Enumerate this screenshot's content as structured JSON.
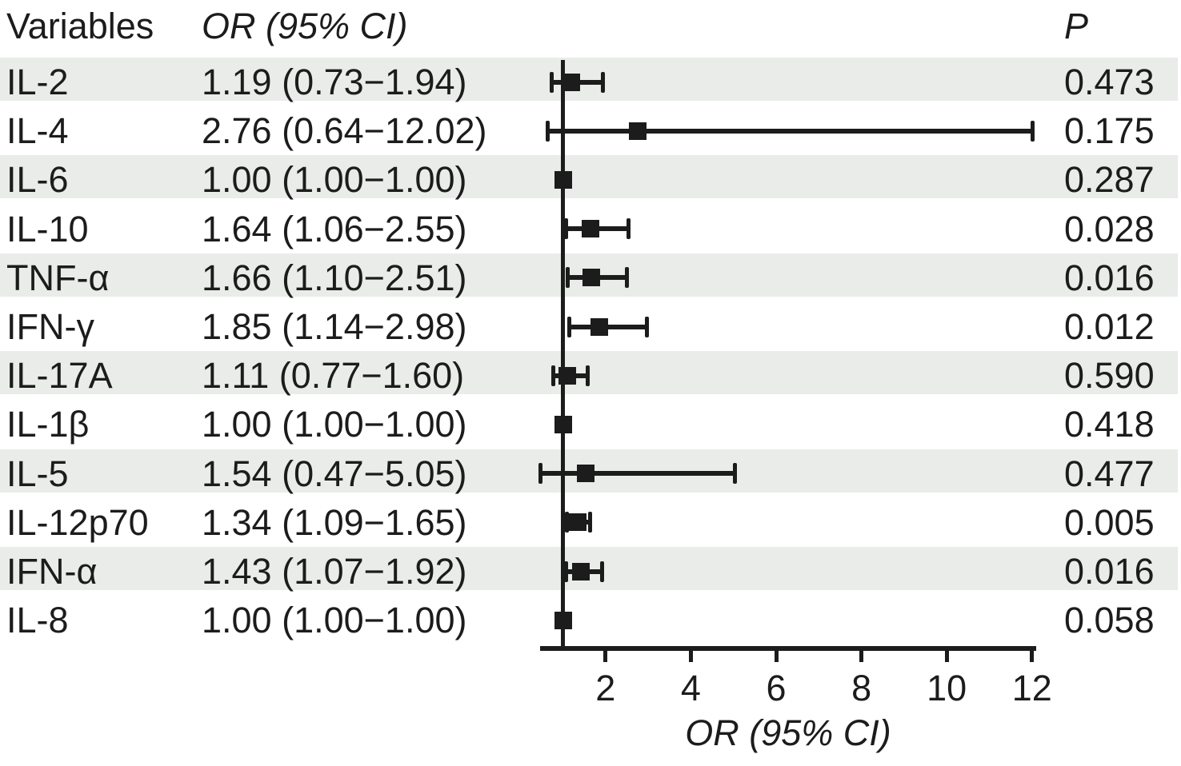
{
  "header": {
    "variables_label": "Variables",
    "or_ci_label": "OR (95% CI)",
    "p_label": "P"
  },
  "colors": {
    "ink": "#1c1c1c",
    "band": "#e9ece9",
    "marker": "#1c1c1c"
  },
  "chart_data": {
    "type": "scatter",
    "subtype": "forest_plot",
    "title": "",
    "xlabel": "OR (95% CI)",
    "x_ticks": [
      2,
      4,
      6,
      8,
      10,
      12
    ],
    "x_range": [
      0.46,
      12.1
    ],
    "reference_line_x": 1.0,
    "grid": false,
    "rows": [
      {
        "variable": "IL-2",
        "or": 1.19,
        "ci_low": 0.73,
        "ci_high": 1.94,
        "or_ci_text": "1.19 (0.73−1.94)",
        "p": "0.473"
      },
      {
        "variable": "IL-4",
        "or": 2.76,
        "ci_low": 0.64,
        "ci_high": 12.02,
        "or_ci_text": "2.76 (0.64−12.02)",
        "p": "0.175"
      },
      {
        "variable": "IL-6",
        "or": 1.0,
        "ci_low": 1.0,
        "ci_high": 1.0,
        "or_ci_text": "1.00 (1.00−1.00)",
        "p": "0.287"
      },
      {
        "variable": "IL-10",
        "or": 1.64,
        "ci_low": 1.06,
        "ci_high": 2.55,
        "or_ci_text": "1.64 (1.06−2.55)",
        "p": "0.028"
      },
      {
        "variable": "TNF-α",
        "or": 1.66,
        "ci_low": 1.1,
        "ci_high": 2.51,
        "or_ci_text": "1.66 (1.10−2.51)",
        "p": "0.016"
      },
      {
        "variable": "IFN-γ",
        "or": 1.85,
        "ci_low": 1.14,
        "ci_high": 2.98,
        "or_ci_text": "1.85 (1.14−2.98)",
        "p": "0.012"
      },
      {
        "variable": "IL-17A",
        "or": 1.11,
        "ci_low": 0.77,
        "ci_high": 1.6,
        "or_ci_text": "1.11 (0.77−1.60)",
        "p": "0.590"
      },
      {
        "variable": "IL-1β",
        "or": 1.0,
        "ci_low": 1.0,
        "ci_high": 1.0,
        "or_ci_text": "1.00 (1.00−1.00)",
        "p": "0.418"
      },
      {
        "variable": "IL-5",
        "or": 1.54,
        "ci_low": 0.47,
        "ci_high": 5.05,
        "or_ci_text": "1.54 (0.47−5.05)",
        "p": "0.477"
      },
      {
        "variable": "IL-12p70",
        "or": 1.34,
        "ci_low": 1.09,
        "ci_high": 1.65,
        "or_ci_text": "1.34 (1.09−1.65)",
        "p": "0.005"
      },
      {
        "variable": "IFN-α",
        "or": 1.43,
        "ci_low": 1.07,
        "ci_high": 1.92,
        "or_ci_text": "1.43 (1.07−1.92)",
        "p": "0.016"
      },
      {
        "variable": "IL-8",
        "or": 1.0,
        "ci_low": 1.0,
        "ci_high": 1.0,
        "or_ci_text": "1.00 (1.00−1.00)",
        "p": "0.058"
      }
    ]
  }
}
